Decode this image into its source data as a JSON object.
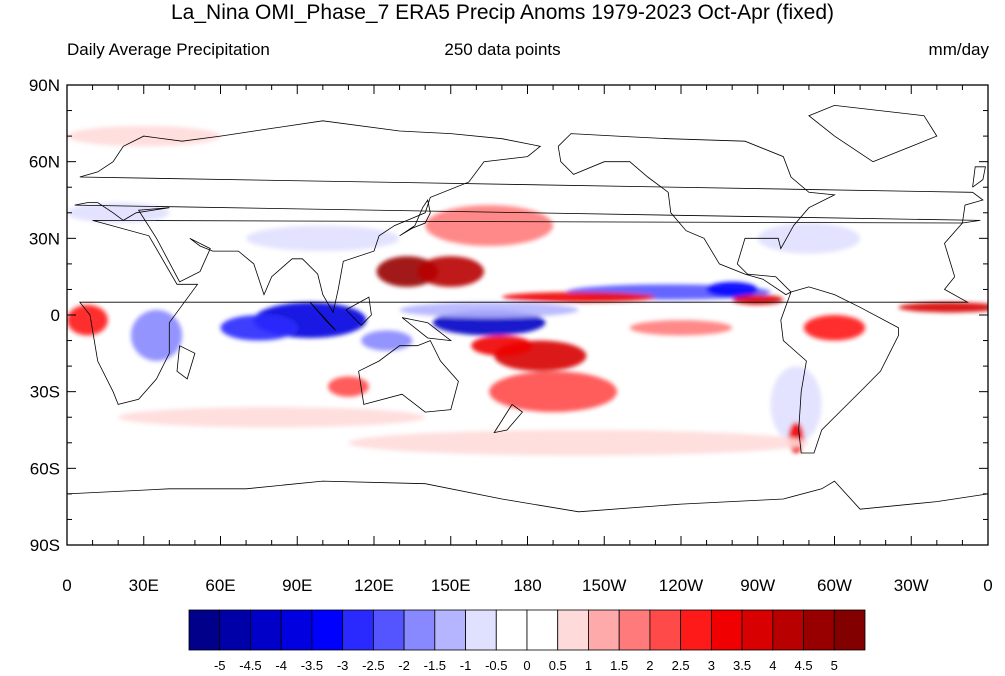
{
  "title": "La_Nina OMI_Phase_7 ERA5 Precip Anoms 1979-2023 Oct-Apr (fixed)",
  "subtitle_left": "Daily Average Precipitation",
  "subtitle_center": "250 data points",
  "subtitle_right": "mm/day",
  "map": {
    "projection": "cylindrical-equidistant",
    "lon_range": [
      0,
      360
    ],
    "lat_range": [
      -90,
      90
    ],
    "lat_ticks": [
      {
        "value": 90,
        "label": "90N"
      },
      {
        "value": 60,
        "label": "60N"
      },
      {
        "value": 30,
        "label": "30N"
      },
      {
        "value": 0,
        "label": "0"
      },
      {
        "value": -30,
        "label": "30S"
      },
      {
        "value": -60,
        "label": "60S"
      },
      {
        "value": -90,
        "label": "90S"
      }
    ],
    "lon_ticks": [
      {
        "value": 0,
        "label": "0"
      },
      {
        "value": 30,
        "label": "30E"
      },
      {
        "value": 60,
        "label": "60E"
      },
      {
        "value": 90,
        "label": "90E"
      },
      {
        "value": 120,
        "label": "120E"
      },
      {
        "value": 150,
        "label": "150E"
      },
      {
        "value": 180,
        "label": "180"
      },
      {
        "value": 210,
        "label": "150W"
      },
      {
        "value": 240,
        "label": "120W"
      },
      {
        "value": 270,
        "label": "90W"
      },
      {
        "value": 300,
        "label": "60W"
      },
      {
        "value": 330,
        "label": "30W"
      },
      {
        "value": 360,
        "label": "0"
      }
    ]
  },
  "colorbar": {
    "labels": [
      "-5",
      "-4.5",
      "-4",
      "-3.5",
      "-3",
      "-2.5",
      "-2",
      "-1.5",
      "-1",
      "-0.5",
      "0",
      "0.5",
      "1",
      "1.5",
      "2",
      "2.5",
      "3",
      "3.5",
      "4",
      "4.5",
      "5"
    ],
    "colors": [
      "#00008a",
      "#0000a8",
      "#0000c8",
      "#0000e0",
      "#0000ff",
      "#2a2aff",
      "#5555ff",
      "#8888ff",
      "#b4b4ff",
      "#e0e0ff",
      "#ffffff",
      "#ffffff",
      "#ffdada",
      "#ffaaaa",
      "#ff7b7b",
      "#ff4a4a",
      "#ff1a1a",
      "#f00000",
      "#d80000",
      "#b80000",
      "#980000",
      "#820000"
    ]
  },
  "anomaly_regions": [
    {
      "lon": 165,
      "lat": -3,
      "rx": 22,
      "ry": 5,
      "value": -4.5
    },
    {
      "lon": 95,
      "lat": -2,
      "rx": 22,
      "ry": 7,
      "value": -4
    },
    {
      "lon": 75,
      "lat": -5,
      "rx": 15,
      "ry": 5,
      "value": -3
    },
    {
      "lon": 235,
      "lat": 9,
      "rx": 40,
      "ry": 3,
      "value": -2.5
    },
    {
      "lon": 260,
      "lat": 10,
      "rx": 10,
      "ry": 3,
      "value": -3.5
    },
    {
      "lon": 35,
      "lat": -8,
      "rx": 10,
      "ry": 10,
      "value": -2
    },
    {
      "lon": 125,
      "lat": -10,
      "rx": 10,
      "ry": 4,
      "value": -2
    },
    {
      "lon": 165,
      "lat": 2,
      "rx": 35,
      "ry": 3,
      "value": -1.5
    },
    {
      "lon": 100,
      "lat": 30,
      "rx": 30,
      "ry": 5,
      "value": -1
    },
    {
      "lon": 290,
      "lat": 30,
      "rx": 20,
      "ry": 6,
      "value": -1
    },
    {
      "lon": 20,
      "lat": 40,
      "rx": 20,
      "ry": 4,
      "value": -1
    },
    {
      "lon": 285,
      "lat": -35,
      "rx": 10,
      "ry": 15,
      "value": -1
    },
    {
      "lon": 133,
      "lat": 17,
      "rx": 12,
      "ry": 6,
      "value": 4.5
    },
    {
      "lon": 150,
      "lat": 17,
      "rx": 13,
      "ry": 6,
      "value": 4
    },
    {
      "lon": 185,
      "lat": -16,
      "rx": 18,
      "ry": 6,
      "value": 3.5
    },
    {
      "lon": 170,
      "lat": -12,
      "rx": 12,
      "ry": 4,
      "value": 3
    },
    {
      "lon": 200,
      "lat": 7,
      "rx": 30,
      "ry": 2,
      "value": 3
    },
    {
      "lon": 345,
      "lat": 3,
      "rx": 20,
      "ry": 2,
      "value": 3.5
    },
    {
      "lon": 270,
      "lat": 6,
      "rx": 10,
      "ry": 2,
      "value": 3.5
    },
    {
      "lon": 300,
      "lat": -5,
      "rx": 12,
      "ry": 5,
      "value": 2.5
    },
    {
      "lon": 285,
      "lat": -48,
      "rx": 3,
      "ry": 6,
      "value": 3
    },
    {
      "lon": 190,
      "lat": -30,
      "rx": 25,
      "ry": 8,
      "value": 2
    },
    {
      "lon": 165,
      "lat": 35,
      "rx": 25,
      "ry": 8,
      "value": 1.5
    },
    {
      "lon": 8,
      "lat": -2,
      "rx": 8,
      "ry": 6,
      "value": 2.5
    },
    {
      "lon": 110,
      "lat": -28,
      "rx": 8,
      "ry": 4,
      "value": 2
    },
    {
      "lon": 240,
      "lat": -5,
      "rx": 20,
      "ry": 3,
      "value": 1.5
    },
    {
      "lon": 80,
      "lat": -40,
      "rx": 60,
      "ry": 4,
      "value": 0.5
    },
    {
      "lon": 200,
      "lat": -50,
      "rx": 90,
      "ry": 5,
      "value": 0.5
    },
    {
      "lon": 30,
      "lat": 70,
      "rx": 30,
      "ry": 4,
      "value": 0.5
    }
  ]
}
